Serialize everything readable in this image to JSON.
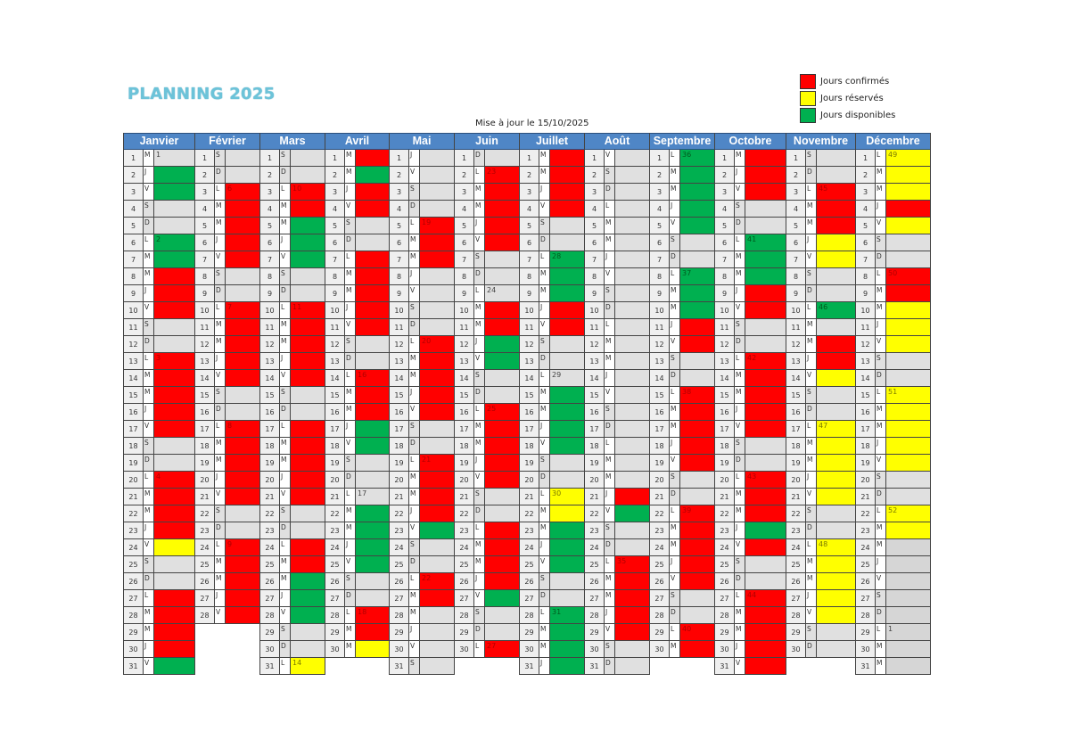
{
  "title": "PLANNING 2025",
  "update_text": "Mise à jour le 15/10/2025",
  "legend": [
    {
      "label": "Jours confirmés",
      "color": "#ff0000"
    },
    {
      "label": "Jours réservés",
      "color": "#ffff00"
    },
    {
      "label": "Jours disponibles",
      "color": "#00b050"
    }
  ],
  "status_colors": {
    "R": "#ff0000",
    "Y": "#ffff00",
    "G": "#00b050",
    "W": "#e0e0e0",
    "D": "#d6d6d6"
  },
  "week_text_colors": {
    "R": "#b00000",
    "Y": "#7a7a00",
    "G": "#005a1e",
    "W": "#444444",
    "D": "#444444"
  },
  "months": [
    {
      "name": "Janvier",
      "weekdays": "MJVSDLMMJVSDLMMJVSDLMMJVSDLMMJV",
      "status": "WGGWWGGRRRWWRRRRRWWRRRRYWWRRRRG",
      "weeks": {
        "1": "1",
        "6": "2",
        "13": "3",
        "20": "4"
      }
    },
    {
      "name": "Février",
      "weekdays": "SDLMMJVSDLMMJVSDLMMJVSDLMMJV",
      "status": "WWRRRRRWWRRRRRWWRRRRRWWRRRRR",
      "weeks": {
        "3": "6",
        "10": "7",
        "17": "8",
        "24": "9"
      }
    },
    {
      "name": "Mars",
      "weekdays": "SDLMMJVSDLMMJVSDLMMJVSDLMMJVSDL",
      "status": "WWRRGGGWWRRRRRWWRRRRRWWRRGGGWWY",
      "weeks": {
        "3": "10",
        "10": "11",
        "31": "14"
      }
    },
    {
      "name": "Avril",
      "weekdays": "MMJVSDLMMJVSDLMMJVSDLMMJVSDLMM",
      "status": "RGRRWWRRRRRWWRRRGGWWWGGGGWWRRY",
      "weeks": {
        "14": "16",
        "21": "17",
        "28": "18"
      }
    },
    {
      "name": "Mai",
      "weekdays": "JVSDLMMJVSDLMMJVSDLMMJVSDLMMJVS",
      "status": "WWWWRRRWWWWRRRRRWWRRRRGWWRRWWWW",
      "weeks": {
        "5": "19",
        "12": "20",
        "19": "21",
        "26": "22"
      }
    },
    {
      "name": "Juin",
      "weekdays": "DLMMJVSDLMMJVSDLMMJVSDLMMJVSDL",
      "status": "WRRRRRWWWRRGGWWRRRRRWWRRRRGWWR",
      "weeks": {
        "2": "23",
        "9": "24",
        "16": "25",
        "30": "27"
      }
    },
    {
      "name": "Juillet",
      "weekdays": "MMJVSDLMMJVSDLMMJVSDLMMJVSDLMMJ",
      "status": "RRRRWWGGGRRWWWGGGGWWYYGGGWWGGGG",
      "weeks": {
        "7": "28",
        "14": "29",
        "21": "30",
        "28": "31"
      }
    },
    {
      "name": "Août",
      "weekdays": "VSDLMMJVSDLMMJVSDLMMJVSDLMMJVSD",
      "status": "WWWWWWWWWWWWWWWWWWWWRGWWRRRRRWW",
      "weeks": {
        "25": "35"
      }
    },
    {
      "name": "Septembre",
      "weekdays": "LMMJVSDLMMJVSDLMMJVSDLMMJVSDLM",
      "status": "GGGGGWWGGGRRWWRRRRRWWRRRRRWWRR",
      "weeks": {
        "1": "36",
        "8": "37",
        "15": "38",
        "22": "39",
        "29": "40"
      }
    },
    {
      "name": "Octobre",
      "weekdays": "MJVSDLMMJVSDLMMJVSDLMMJVSDLMMJV",
      "status": "RRRWWGGGRRWWRRRRRWWRRRGRWWRRRRR",
      "weeks": {
        "6": "41",
        "13": "42",
        "20": "43",
        "27": "44"
      }
    },
    {
      "name": "Novembre",
      "weekdays": "SDLMMJVSDLMMJVSDLMMJVSDLMMJVSD",
      "status": "WWRRRYYWWGWRRYWWYYYYYWWYYYYYWW",
      "weeks": {
        "3": "45",
        "10": "46",
        "17": "47",
        "24": "48"
      }
    },
    {
      "name": "Décembre",
      "weekdays": "LMMJVSDLMMJVSDLMMJVSDLMMJVSDLMM",
      "status": "YYYRYWWRRYYYWWYYYYYWWYYDDDDDDDD",
      "weeks": {
        "1": "49",
        "8": "50",
        "15": "51",
        "22": "52",
        "29": "1"
      }
    }
  ]
}
